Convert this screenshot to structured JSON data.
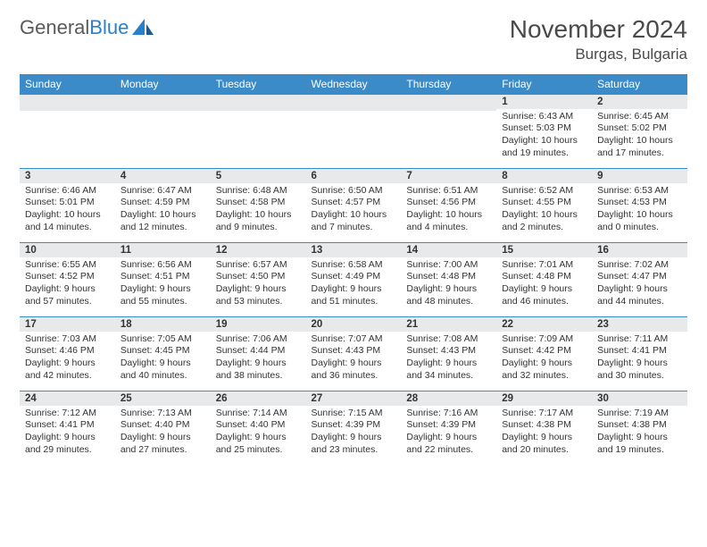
{
  "logo": {
    "text1": "General",
    "text2": "Blue"
  },
  "title": "November 2024",
  "location": "Burgas, Bulgaria",
  "weekdays": [
    "Sunday",
    "Monday",
    "Tuesday",
    "Wednesday",
    "Thursday",
    "Friday",
    "Saturday"
  ],
  "colors": {
    "headerBar": "#3b8bc9",
    "dayStripe": "#e7e9ea",
    "borderTop": "#3b8bc9",
    "text": "#333333",
    "titleText": "#4a4a4a",
    "logoGray": "#5a5a5a",
    "logoBlue": "#2a7fc9"
  },
  "weeks": [
    [
      null,
      null,
      null,
      null,
      null,
      {
        "n": "1",
        "sr": "6:43 AM",
        "ss": "5:03 PM",
        "dl": "10 hours and 19 minutes."
      },
      {
        "n": "2",
        "sr": "6:45 AM",
        "ss": "5:02 PM",
        "dl": "10 hours and 17 minutes."
      }
    ],
    [
      {
        "n": "3",
        "sr": "6:46 AM",
        "ss": "5:01 PM",
        "dl": "10 hours and 14 minutes."
      },
      {
        "n": "4",
        "sr": "6:47 AM",
        "ss": "4:59 PM",
        "dl": "10 hours and 12 minutes."
      },
      {
        "n": "5",
        "sr": "6:48 AM",
        "ss": "4:58 PM",
        "dl": "10 hours and 9 minutes."
      },
      {
        "n": "6",
        "sr": "6:50 AM",
        "ss": "4:57 PM",
        "dl": "10 hours and 7 minutes."
      },
      {
        "n": "7",
        "sr": "6:51 AM",
        "ss": "4:56 PM",
        "dl": "10 hours and 4 minutes."
      },
      {
        "n": "8",
        "sr": "6:52 AM",
        "ss": "4:55 PM",
        "dl": "10 hours and 2 minutes."
      },
      {
        "n": "9",
        "sr": "6:53 AM",
        "ss": "4:53 PM",
        "dl": "10 hours and 0 minutes."
      }
    ],
    [
      {
        "n": "10",
        "sr": "6:55 AM",
        "ss": "4:52 PM",
        "dl": "9 hours and 57 minutes."
      },
      {
        "n": "11",
        "sr": "6:56 AM",
        "ss": "4:51 PM",
        "dl": "9 hours and 55 minutes."
      },
      {
        "n": "12",
        "sr": "6:57 AM",
        "ss": "4:50 PM",
        "dl": "9 hours and 53 minutes."
      },
      {
        "n": "13",
        "sr": "6:58 AM",
        "ss": "4:49 PM",
        "dl": "9 hours and 51 minutes."
      },
      {
        "n": "14",
        "sr": "7:00 AM",
        "ss": "4:48 PM",
        "dl": "9 hours and 48 minutes."
      },
      {
        "n": "15",
        "sr": "7:01 AM",
        "ss": "4:48 PM",
        "dl": "9 hours and 46 minutes."
      },
      {
        "n": "16",
        "sr": "7:02 AM",
        "ss": "4:47 PM",
        "dl": "9 hours and 44 minutes."
      }
    ],
    [
      {
        "n": "17",
        "sr": "7:03 AM",
        "ss": "4:46 PM",
        "dl": "9 hours and 42 minutes."
      },
      {
        "n": "18",
        "sr": "7:05 AM",
        "ss": "4:45 PM",
        "dl": "9 hours and 40 minutes."
      },
      {
        "n": "19",
        "sr": "7:06 AM",
        "ss": "4:44 PM",
        "dl": "9 hours and 38 minutes."
      },
      {
        "n": "20",
        "sr": "7:07 AM",
        "ss": "4:43 PM",
        "dl": "9 hours and 36 minutes."
      },
      {
        "n": "21",
        "sr": "7:08 AM",
        "ss": "4:43 PM",
        "dl": "9 hours and 34 minutes."
      },
      {
        "n": "22",
        "sr": "7:09 AM",
        "ss": "4:42 PM",
        "dl": "9 hours and 32 minutes."
      },
      {
        "n": "23",
        "sr": "7:11 AM",
        "ss": "4:41 PM",
        "dl": "9 hours and 30 minutes."
      }
    ],
    [
      {
        "n": "24",
        "sr": "7:12 AM",
        "ss": "4:41 PM",
        "dl": "9 hours and 29 minutes."
      },
      {
        "n": "25",
        "sr": "7:13 AM",
        "ss": "4:40 PM",
        "dl": "9 hours and 27 minutes."
      },
      {
        "n": "26",
        "sr": "7:14 AM",
        "ss": "4:40 PM",
        "dl": "9 hours and 25 minutes."
      },
      {
        "n": "27",
        "sr": "7:15 AM",
        "ss": "4:39 PM",
        "dl": "9 hours and 23 minutes."
      },
      {
        "n": "28",
        "sr": "7:16 AM",
        "ss": "4:39 PM",
        "dl": "9 hours and 22 minutes."
      },
      {
        "n": "29",
        "sr": "7:17 AM",
        "ss": "4:38 PM",
        "dl": "9 hours and 20 minutes."
      },
      {
        "n": "30",
        "sr": "7:19 AM",
        "ss": "4:38 PM",
        "dl": "9 hours and 19 minutes."
      }
    ]
  ]
}
